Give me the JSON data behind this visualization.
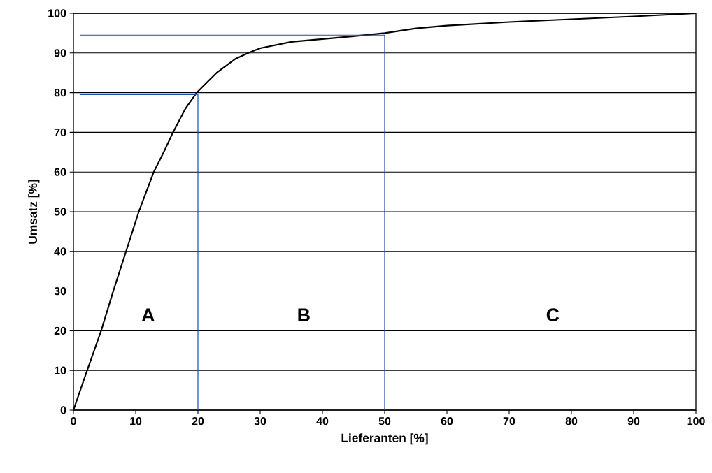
{
  "chart_data": {
    "type": "line",
    "xlabel": "Lieferanten [%]",
    "ylabel": "Umsatz [%]",
    "xlim": [
      0,
      100
    ],
    "ylim": [
      0,
      100
    ],
    "xticks": [
      0,
      10,
      20,
      30,
      40,
      50,
      60,
      70,
      80,
      90,
      100
    ],
    "yticks": [
      0,
      10,
      20,
      30,
      40,
      50,
      60,
      70,
      80,
      90,
      100
    ],
    "grid": "y",
    "marker": "none",
    "line_style": "solid",
    "series": [
      {
        "color": "#000000",
        "x": [
          0,
          2.2,
          4.45,
          6.4,
          8.45,
          10.5,
          12.9,
          14.5,
          16,
          18,
          19.8,
          23,
          26,
          28.1,
          30,
          35,
          40,
          45,
          50,
          55,
          60,
          70,
          80,
          90,
          100
        ],
        "values": [
          0,
          10,
          20,
          30,
          40,
          50,
          60,
          65,
          70,
          76,
          80,
          85,
          88.5,
          90,
          91.2,
          92.8,
          93.5,
          94.2,
          95,
          96.2,
          96.9,
          97.8,
          98.5,
          99.2,
          100
        ]
      },
      {
        "color": "#1f4fa8",
        "x": [
          1,
          20,
          20
        ],
        "values": [
          79.5,
          79.5,
          0
        ]
      },
      {
        "color": "#1f4fa8",
        "x": [
          1,
          50,
          50
        ],
        "values": [
          94.5,
          94.5,
          0
        ]
      }
    ],
    "annotations": [
      "A",
      "B",
      "C"
    ]
  }
}
